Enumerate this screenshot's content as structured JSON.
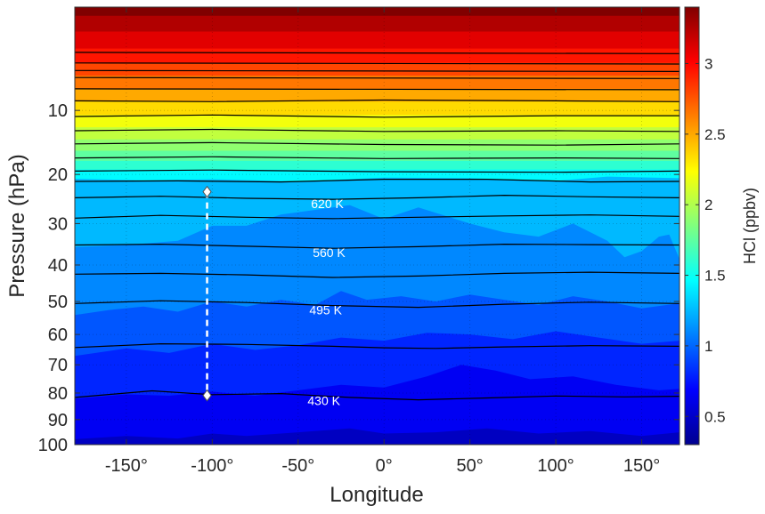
{
  "chart_data": {
    "type": "heatmap",
    "subtype": "filled-contour",
    "xlabel": "Longitude",
    "ylabel": "Pressure (hPa)",
    "xlim": [
      -180,
      172
    ],
    "ylim": [
      1,
      100
    ],
    "y_reversed": true,
    "xticks": [
      -150,
      -100,
      -50,
      0,
      50,
      100,
      150
    ],
    "xtick_labels": [
      "-150°",
      "-100°",
      "-50°",
      "0°",
      "50°",
      "100°",
      "150°"
    ],
    "yticks": [
      10,
      20,
      30,
      40,
      50,
      60,
      70,
      80,
      90,
      100
    ],
    "ytick_labels": [
      "10",
      "20",
      "30",
      "40",
      "50",
      "60",
      "70",
      "80",
      "90",
      "100"
    ],
    "grid": true,
    "colorbar": {
      "label": "HCl (ppbv)",
      "colormap": "jet",
      "clim": [
        0.3,
        3.4
      ],
      "ticks": [
        0.5,
        1,
        1.5,
        2,
        2.5,
        3
      ],
      "tick_labels": [
        "0.5",
        "1",
        "1.5",
        "2",
        "2.5",
        "3"
      ]
    },
    "bands": [
      {
        "value": 0.3,
        "boundary_lon": [
          -180,
          172
        ],
        "boundary_p": [
          100,
          100
        ]
      },
      {
        "value": 0.5,
        "boundary_lon": [
          -180,
          -150,
          -120,
          -100,
          -80,
          -50,
          -20,
          0,
          30,
          60,
          90,
          120,
          150,
          172
        ],
        "boundary_p": [
          97.8,
          96.5,
          97.5,
          95.5,
          96.5,
          95,
          93.5,
          95.5,
          95,
          93.5,
          95.5,
          94.5,
          96.5,
          95
        ]
      },
      {
        "value": 0.65,
        "boundary_lon": [
          -180,
          -150,
          -125,
          -100,
          -75,
          -50,
          -25,
          0,
          25,
          45,
          65,
          85,
          110,
          135,
          160,
          172
        ],
        "boundary_p": [
          82,
          80.5,
          81,
          79.5,
          81,
          79,
          77,
          78,
          74,
          70,
          72,
          75,
          74,
          77,
          79,
          78.5
        ]
      },
      {
        "value": 0.8,
        "boundary_lon": [
          -180,
          -150,
          -125,
          -100,
          -75,
          -50,
          -25,
          0,
          25,
          50,
          75,
          100,
          125,
          150,
          172
        ],
        "boundary_p": [
          67,
          64.5,
          66,
          63,
          65,
          63.5,
          61,
          62,
          59.5,
          60,
          61.5,
          59,
          61,
          63,
          62
        ]
      },
      {
        "value": 0.95,
        "boundary_lon": [
          -180,
          -160,
          -140,
          -120,
          -100,
          -80,
          -60,
          -40,
          -25,
          -10,
          10,
          30,
          50,
          70,
          90,
          110,
          130,
          150,
          172
        ],
        "boundary_p": [
          54,
          52.5,
          51.5,
          53,
          50,
          51.5,
          49.5,
          51,
          47,
          49.5,
          48.5,
          50,
          48,
          49.5,
          51,
          48.5,
          50,
          52,
          50.5
        ]
      },
      {
        "value": 1.1,
        "boundary_lon": [
          -180,
          -150,
          -120,
          -100,
          -80,
          -60,
          -40,
          -20,
          0,
          20,
          50,
          70,
          90,
          110,
          130,
          140,
          150,
          160,
          166,
          172
        ],
        "boundary_p": [
          35.5,
          35,
          34,
          30.5,
          30.5,
          28,
          27,
          26,
          29,
          26.5,
          30,
          32,
          33,
          30,
          34,
          38,
          36.5,
          33,
          32.5,
          38.5
        ]
      },
      {
        "value": 1.25,
        "boundary_lon": [
          -180,
          -140,
          -100,
          -50,
          0,
          50,
          100,
          130,
          172
        ],
        "boundary_p": [
          20.8,
          21.1,
          20.9,
          21.3,
          20.6,
          20.7,
          21.2,
          20.4,
          20.7
        ]
      },
      {
        "value": 1.45,
        "boundary_lon": [
          -180,
          172
        ],
        "boundary_p": [
          19.1,
          19.1
        ]
      },
      {
        "value": 1.6,
        "boundary_lon": [
          -180,
          172
        ],
        "boundary_p": [
          17.6,
          17.6
        ]
      },
      {
        "value": 1.75,
        "boundary_lon": [
          -180,
          172
        ],
        "boundary_p": [
          15.9,
          15.9
        ]
      },
      {
        "value": 1.9,
        "boundary_lon": [
          -180,
          172
        ],
        "boundary_p": [
          14.1,
          14.1
        ]
      },
      {
        "value": 2.05,
        "boundary_lon": [
          -180,
          172
        ],
        "boundary_p": [
          12.3,
          12.3
        ]
      },
      {
        "value": 2.2,
        "boundary_lon": [
          -180,
          172
        ],
        "boundary_p": [
          10.6,
          10.6
        ]
      },
      {
        "value": 2.35,
        "boundary_lon": [
          -180,
          172
        ],
        "boundary_p": [
          8.9,
          8.9
        ]
      },
      {
        "value": 2.5,
        "boundary_lon": [
          -180,
          172
        ],
        "boundary_p": [
          7.4,
          7.4
        ]
      },
      {
        "value": 2.65,
        "boundary_lon": [
          -180,
          172
        ],
        "boundary_p": [
          6.0,
          6.0
        ]
      },
      {
        "value": 2.8,
        "boundary_lon": [
          -180,
          172
        ],
        "boundary_p": [
          4.8,
          4.8
        ]
      },
      {
        "value": 2.95,
        "boundary_lon": [
          -180,
          172
        ],
        "boundary_p": [
          3.6,
          3.6
        ]
      },
      {
        "value": 3.1,
        "boundary_lon": [
          -180,
          172
        ],
        "boundary_p": [
          2.4,
          2.4
        ]
      },
      {
        "value": 3.25,
        "boundary_lon": [
          -180,
          172
        ],
        "boundary_p": [
          1.5,
          1.5
        ]
      }
    ],
    "isentropes": [
      {
        "lon": [
          -180,
          172
        ],
        "p": [
          3.9,
          4.0
        ]
      },
      {
        "lon": [
          -180,
          172
        ],
        "p": [
          4.8,
          4.9
        ]
      },
      {
        "lon": [
          -180,
          172
        ],
        "p": [
          5.5,
          5.6
        ]
      },
      {
        "lon": [
          -180,
          172
        ],
        "p": [
          6.2,
          6.3
        ]
      },
      {
        "lon": [
          -180,
          172
        ],
        "p": [
          7.4,
          7.5
        ]
      },
      {
        "lon": [
          -180,
          -100,
          0,
          100,
          172
        ],
        "p": [
          8.8,
          8.9,
          8.7,
          8.8,
          8.9
        ]
      },
      {
        "lon": [
          -180,
          -100,
          0,
          100,
          172
        ],
        "p": [
          10.8,
          10.6,
          10.9,
          10.7,
          10.7
        ]
      },
      {
        "lon": [
          -180,
          -100,
          0,
          100,
          172
        ],
        "p": [
          12.8,
          12.6,
          12.9,
          12.8,
          12.9
        ]
      },
      {
        "lon": [
          -180,
          -100,
          0,
          100,
          172
        ],
        "p": [
          14.8,
          14.6,
          14.9,
          15.0,
          14.8
        ]
      },
      {
        "lon": [
          -180,
          -100,
          0,
          100,
          172
        ],
        "p": [
          17.1,
          16.9,
          17.2,
          17.1,
          17.2
        ]
      },
      {
        "lon": [
          -180,
          -100,
          0,
          100,
          172
        ],
        "p": [
          19.4,
          19.2,
          19.5,
          19.6,
          19.4
        ]
      },
      {
        "lon": [
          -180,
          -120,
          -60,
          0,
          60,
          120,
          172
        ],
        "p": [
          21.3,
          21.2,
          21.4,
          20.9,
          20.9,
          21.4,
          21.3
        ]
      },
      {
        "lon": [
          -180,
          -130,
          -80,
          -30,
          20,
          70,
          120,
          172
        ],
        "p": [
          24.5,
          24.2,
          24.6,
          24.8,
          24.5,
          24.0,
          24.3,
          24.5
        ],
        "label": "620 K",
        "label_lon": -33
      },
      {
        "lon": [
          -180,
          -130,
          -80,
          -30,
          20,
          70,
          120,
          172
        ],
        "p": [
          28.8,
          28.2,
          28.6,
          28.9,
          28.6,
          28.3,
          28.1,
          28.4
        ]
      },
      {
        "lon": [
          -180,
          -130,
          -80,
          -30,
          20,
          70,
          120,
          172
        ],
        "p": [
          35.0,
          34.8,
          35.3,
          35.8,
          35.4,
          34.8,
          34.9,
          35.0
        ],
        "label": "560 K",
        "label_lon": -32
      },
      {
        "lon": [
          -180,
          -130,
          -80,
          -30,
          20,
          70,
          120,
          172
        ],
        "p": [
          42.4,
          42.2,
          42.6,
          43.3,
          42.9,
          42.2,
          41.9,
          42.2
        ]
      },
      {
        "lon": [
          -180,
          -130,
          -80,
          -30,
          20,
          70,
          120,
          172
        ],
        "p": [
          50.6,
          49.8,
          50.3,
          51.2,
          51.7,
          50.8,
          50.2,
          50.6
        ],
        "label": "495 K",
        "label_lon": -34
      },
      {
        "lon": [
          -180,
          -130,
          -80,
          -30,
          0,
          30,
          70,
          120,
          172
        ],
        "p": [
          64.2,
          63.0,
          63.2,
          63.8,
          64.3,
          64.5,
          64.0,
          63.6,
          63.8
        ]
      },
      {
        "lon": [
          -180,
          -135,
          -100,
          -60,
          -20,
          20,
          60,
          100,
          140,
          172
        ],
        "p": [
          81.6,
          79.2,
          80.6,
          80.2,
          81.6,
          82.5,
          81.8,
          81.1,
          81.4,
          81.2
        ],
        "label": "430 K",
        "label_lon": -35
      }
    ],
    "annotations": [
      {
        "type": "dashed-vertical-line",
        "lon": -103,
        "p_top": 23.3,
        "p_bottom": 80.9,
        "marker": "diamond"
      }
    ]
  }
}
